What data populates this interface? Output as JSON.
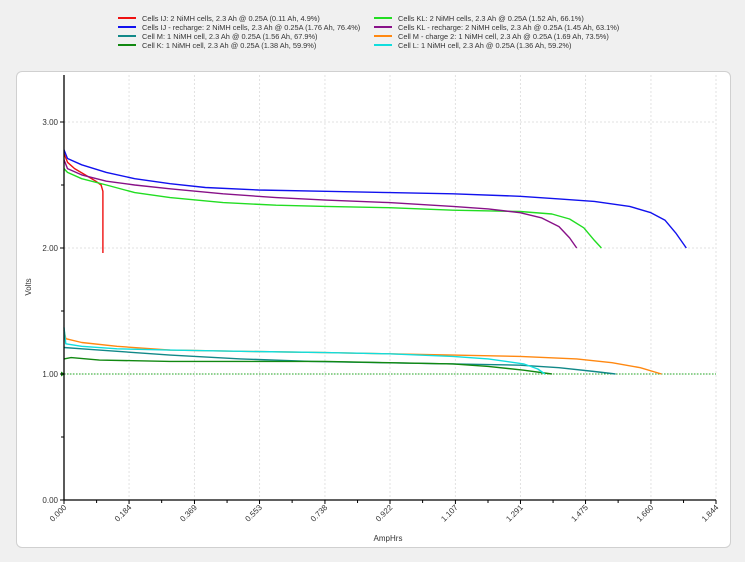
{
  "chart_data": {
    "type": "line",
    "title": "",
    "xlabel": "AmpHrs",
    "ylabel": "Volts",
    "xlim": [
      0,
      1.844
    ],
    "ylim": [
      0,
      3.37
    ],
    "x_ticks": [
      "0.000",
      "0.184",
      "0.369",
      "0.553",
      "0.738",
      "0.922",
      "1.107",
      "1.291",
      "1.475",
      "1.660",
      "1.844"
    ],
    "y_ticks": [
      "0.00",
      "1.00",
      "2.00",
      "3.00"
    ],
    "grid": true,
    "reference_line": {
      "y": 1.0,
      "color": "#22aa22",
      "style": "dotted"
    },
    "legend_position": "top",
    "series": [
      {
        "name": "Cells IJ: 2 NiMH cells, 2.3 Ah @ 0.25A (0.11 Ah, 4.9%)",
        "color": "#ee1111",
        "points": [
          [
            0,
            2.75
          ],
          [
            0.01,
            2.68
          ],
          [
            0.03,
            2.63
          ],
          [
            0.06,
            2.58
          ],
          [
            0.09,
            2.53
          ],
          [
            0.105,
            2.5
          ],
          [
            0.11,
            2.45
          ],
          [
            0.11,
            1.96
          ]
        ]
      },
      {
        "name": "Cells IJ - recharge: 2 NiMH cells, 2.3 Ah @ 0.25A (1.76 Ah, 76.4%)",
        "color": "#1111ee",
        "points": [
          [
            0,
            2.78
          ],
          [
            0.01,
            2.71
          ],
          [
            0.05,
            2.66
          ],
          [
            0.12,
            2.6
          ],
          [
            0.2,
            2.55
          ],
          [
            0.3,
            2.51
          ],
          [
            0.4,
            2.48
          ],
          [
            0.55,
            2.46
          ],
          [
            0.74,
            2.45
          ],
          [
            0.92,
            2.44
          ],
          [
            1.1,
            2.43
          ],
          [
            1.29,
            2.41
          ],
          [
            1.4,
            2.39
          ],
          [
            1.5,
            2.37
          ],
          [
            1.6,
            2.33
          ],
          [
            1.66,
            2.28
          ],
          [
            1.7,
            2.22
          ],
          [
            1.73,
            2.12
          ],
          [
            1.76,
            2.0
          ]
        ]
      },
      {
        "name": "Cell M: 1 NiMH cell, 2.3 Ah @ 0.25A (1.56 Ah, 67.9%)",
        "color": "#118888",
        "points": [
          [
            0,
            1.21
          ],
          [
            0.05,
            1.2
          ],
          [
            0.15,
            1.18
          ],
          [
            0.3,
            1.15
          ],
          [
            0.5,
            1.12
          ],
          [
            0.7,
            1.1
          ],
          [
            0.9,
            1.09
          ],
          [
            1.1,
            1.08
          ],
          [
            1.29,
            1.07
          ],
          [
            1.4,
            1.05
          ],
          [
            1.5,
            1.02
          ],
          [
            1.56,
            1.0
          ]
        ]
      },
      {
        "name": "Cell K: 1 NiMH cell, 2.3 Ah @ 0.25A (1.38 Ah, 59.9%)",
        "color": "#118811",
        "points": [
          [
            0,
            1.12
          ],
          [
            0.02,
            1.13
          ],
          [
            0.1,
            1.11
          ],
          [
            0.3,
            1.1
          ],
          [
            0.5,
            1.1
          ],
          [
            0.74,
            1.1
          ],
          [
            0.92,
            1.09
          ],
          [
            1.1,
            1.08
          ],
          [
            1.2,
            1.06
          ],
          [
            1.3,
            1.03
          ],
          [
            1.38,
            1.0
          ]
        ]
      },
      {
        "name": "Cells KL: 2 NiMH cells, 2.3 Ah @ 0.25A (1.52 Ah, 66.1%)",
        "color": "#22dd22",
        "points": [
          [
            0,
            2.63
          ],
          [
            0.01,
            2.6
          ],
          [
            0.05,
            2.55
          ],
          [
            0.12,
            2.5
          ],
          [
            0.2,
            2.44
          ],
          [
            0.3,
            2.4
          ],
          [
            0.45,
            2.36
          ],
          [
            0.6,
            2.34
          ],
          [
            0.74,
            2.33
          ],
          [
            0.92,
            2.32
          ],
          [
            1.1,
            2.3
          ],
          [
            1.29,
            2.29
          ],
          [
            1.38,
            2.27
          ],
          [
            1.43,
            2.23
          ],
          [
            1.47,
            2.16
          ],
          [
            1.5,
            2.06
          ],
          [
            1.52,
            2.0
          ]
        ]
      },
      {
        "name": "Cells KL - recharge: 2 NiMH cells, 2.3 Ah @ 0.25A (1.45 Ah, 63.1%)",
        "color": "#881188",
        "points": [
          [
            0,
            2.7
          ],
          [
            0.01,
            2.63
          ],
          [
            0.05,
            2.58
          ],
          [
            0.12,
            2.53
          ],
          [
            0.2,
            2.5
          ],
          [
            0.3,
            2.47
          ],
          [
            0.45,
            2.43
          ],
          [
            0.6,
            2.4
          ],
          [
            0.74,
            2.38
          ],
          [
            0.92,
            2.36
          ],
          [
            1.1,
            2.33
          ],
          [
            1.2,
            2.31
          ],
          [
            1.29,
            2.28
          ],
          [
            1.35,
            2.24
          ],
          [
            1.4,
            2.17
          ],
          [
            1.43,
            2.08
          ],
          [
            1.45,
            2.0
          ]
        ]
      },
      {
        "name": "Cell M - charge 2: 1 NiMH cell, 2.3 Ah @ 0.25A (1.69 Ah, 73.5%)",
        "color": "#ff8811",
        "points": [
          [
            0,
            1.35
          ],
          [
            0.005,
            1.28
          ],
          [
            0.05,
            1.25
          ],
          [
            0.15,
            1.22
          ],
          [
            0.3,
            1.19
          ],
          [
            0.5,
            1.18
          ],
          [
            0.74,
            1.17
          ],
          [
            0.92,
            1.16
          ],
          [
            1.1,
            1.15
          ],
          [
            1.29,
            1.14
          ],
          [
            1.45,
            1.12
          ],
          [
            1.55,
            1.09
          ],
          [
            1.63,
            1.05
          ],
          [
            1.69,
            1.0
          ]
        ]
      },
      {
        "name": "Cell L: 1 NiMH cell, 2.3 Ah @ 0.25A (1.36 Ah, 59.2%)",
        "color": "#11dddd",
        "points": [
          [
            0,
            1.37
          ],
          [
            0.005,
            1.24
          ],
          [
            0.05,
            1.22
          ],
          [
            0.15,
            1.2
          ],
          [
            0.3,
            1.19
          ],
          [
            0.5,
            1.18
          ],
          [
            0.74,
            1.17
          ],
          [
            0.92,
            1.16
          ],
          [
            1.1,
            1.14
          ],
          [
            1.2,
            1.12
          ],
          [
            1.3,
            1.08
          ],
          [
            1.34,
            1.04
          ],
          [
            1.36,
            1.0
          ]
        ]
      }
    ]
  },
  "legend": {
    "items": [
      {
        "label": "Cells IJ: 2 NiMH cells, 2.3 Ah @ 0.25A (0.11 Ah, 4.9%)",
        "color": "#ee1111"
      },
      {
        "label": "Cells IJ - recharge: 2 NiMH cells, 2.3 Ah @ 0.25A (1.76 Ah, 76.4%)",
        "color": "#1111ee"
      },
      {
        "label": "Cell M: 1 NiMH cell, 2.3 Ah @ 0.25A (1.56 Ah, 67.9%)",
        "color": "#118888"
      },
      {
        "label": "Cell K: 1 NiMH cell, 2.3 Ah @ 0.25A (1.38 Ah, 59.9%)",
        "color": "#118811"
      },
      {
        "label": "Cells KL: 2 NiMH cells, 2.3 Ah @ 0.25A (1.52 Ah, 66.1%)",
        "color": "#22dd22"
      },
      {
        "label": "Cells KL - recharge: 2 NiMH cells, 2.3 Ah @ 0.25A (1.45 Ah, 63.1%)",
        "color": "#881188"
      },
      {
        "label": "Cell M - charge 2: 1 NiMH cell, 2.3 Ah @ 0.25A (1.69 Ah, 73.5%)",
        "color": "#ff8811"
      },
      {
        "label": "Cell L: 1 NiMH cell, 2.3 Ah @ 0.25A (1.36 Ah, 59.2%)",
        "color": "#11dddd"
      }
    ]
  },
  "axes": {
    "x_title": "AmpHrs",
    "y_title": "Volts"
  }
}
